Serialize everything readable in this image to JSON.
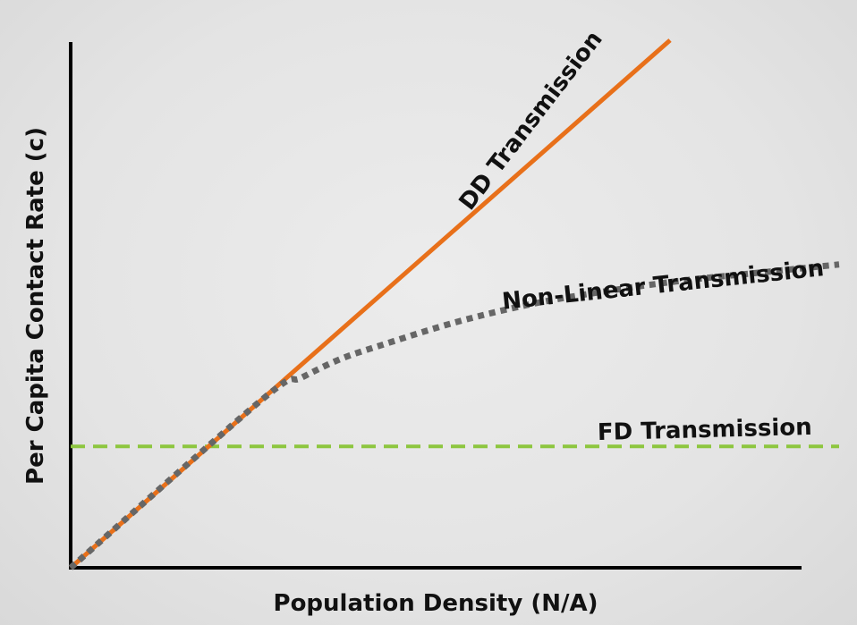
{
  "chart_data": {
    "type": "line",
    "title": "",
    "xlabel": "Population Density (N/A)",
    "ylabel": "Per Capita Contact Rate (c)",
    "xlim": [
      0,
      1
    ],
    "ylim": [
      0,
      1
    ],
    "grid": false,
    "legend": "none",
    "series": [
      {
        "name": "DD Transmission",
        "color": "#E8701A",
        "style": "solid",
        "x": [
          0,
          0.78
        ],
        "y": [
          0,
          1.0
        ]
      },
      {
        "name": "Non-Linear Transmission",
        "color": "#666666",
        "style": "dotted",
        "x": [
          0,
          0.25,
          0.3,
          0.35,
          0.4,
          0.5,
          0.6,
          0.7,
          0.8,
          0.9,
          1.0
        ],
        "y": [
          0,
          0.32,
          0.36,
          0.395,
          0.42,
          0.465,
          0.5,
          0.525,
          0.545,
          0.56,
          0.575
        ]
      },
      {
        "name": "FD Transmission",
        "color": "#8DC63F",
        "style": "dashed",
        "x": [
          0,
          1.0
        ],
        "y": [
          0.23,
          0.23
        ]
      }
    ]
  }
}
